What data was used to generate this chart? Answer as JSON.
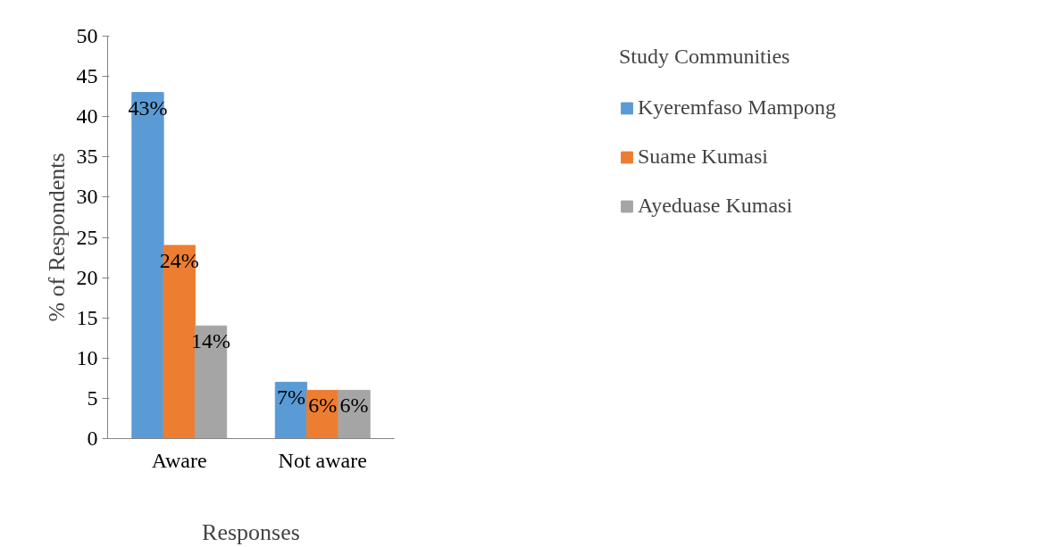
{
  "chart_data": {
    "type": "bar",
    "xlabel": "Responses",
    "ylabel": "% of Respondents",
    "legend_title": "Study Communities",
    "legend": "right",
    "grid": false,
    "categories": [
      "Aware",
      "Not aware"
    ],
    "series": [
      {
        "name": "Kyeremfaso Mampong",
        "color": "#5b9bd5",
        "values": [
          43,
          7
        ],
        "value_labels": [
          "43%",
          "7%"
        ]
      },
      {
        "name": "Suame Kumasi",
        "color": "#ed7d31",
        "values": [
          24,
          6
        ],
        "value_labels": [
          "24%",
          "6%"
        ]
      },
      {
        "name": "Ayeduase Kumasi",
        "color": "#a5a5a5",
        "values": [
          14,
          6
        ],
        "value_labels": [
          "14%",
          "6%"
        ]
      }
    ],
    "ylim": [
      0,
      50
    ],
    "yticks": [
      0,
      5,
      10,
      15,
      20,
      25,
      30,
      35,
      40,
      45,
      50
    ]
  }
}
